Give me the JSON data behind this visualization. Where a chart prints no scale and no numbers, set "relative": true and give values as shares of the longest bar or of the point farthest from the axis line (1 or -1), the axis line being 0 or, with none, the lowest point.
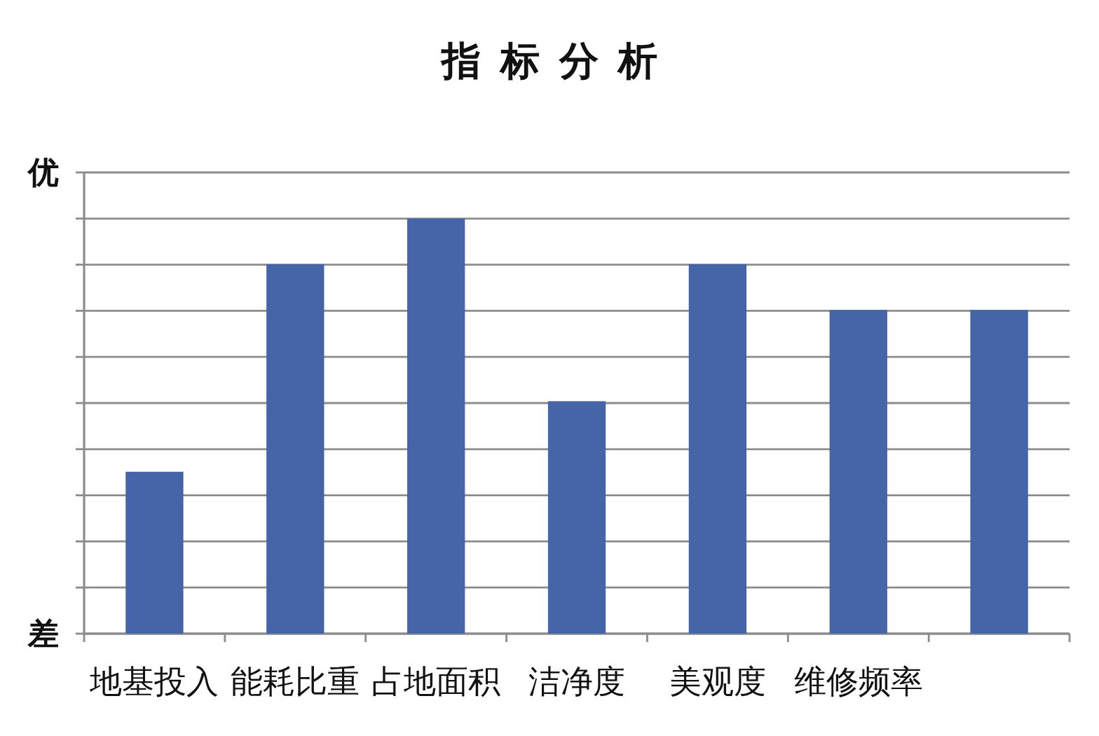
{
  "chart_data": {
    "type": "bar",
    "title": "指标分析",
    "categories": [
      "地基投入",
      "能耗比重",
      "占地面积",
      "洁净度",
      "美观度",
      "维修频率",
      null
    ],
    "values": [
      0.39,
      0.89,
      1,
      0.56,
      0.89,
      0.78,
      0.78
    ],
    "relative": true,
    "color": "#4565a8",
    "annotations": [
      "优",
      "差"
    ],
    "grid": "y"
  }
}
